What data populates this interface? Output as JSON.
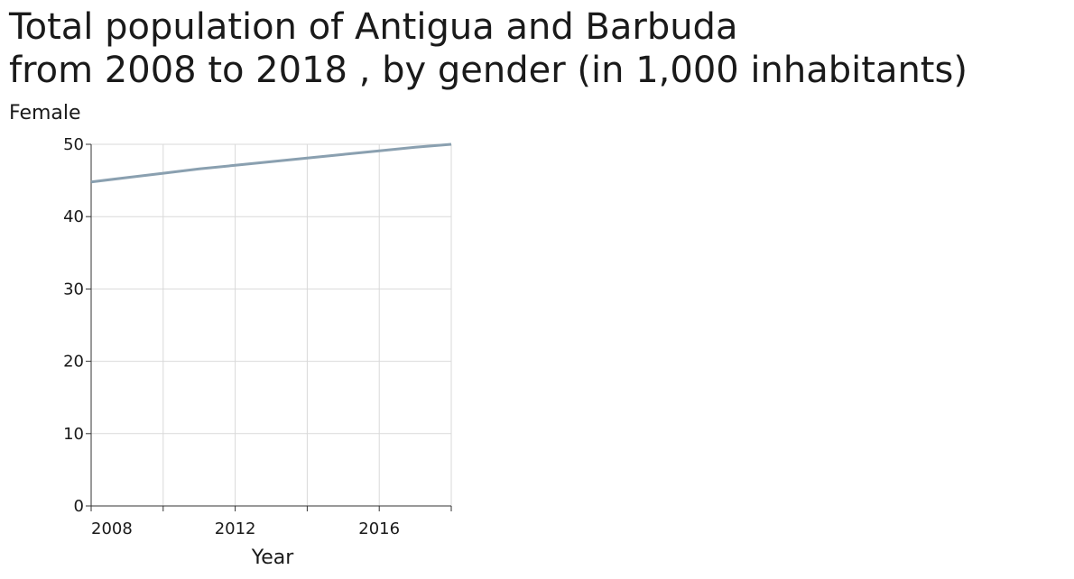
{
  "chart_data": {
    "type": "line",
    "title_line1": "Total population of Antigua and Barbuda",
    "title_line2": "from 2008 to 2018 , by gender (in 1,000 inhabitants)",
    "ylabel": "Female",
    "xlabel": "Year",
    "xlim": [
      2008,
      2018
    ],
    "ylim": [
      0,
      50
    ],
    "x_ticks": [
      2008,
      2012,
      2016
    ],
    "x_grid": [
      2008,
      2010,
      2012,
      2014,
      2016,
      2018
    ],
    "y_ticks": [
      0,
      10,
      20,
      30,
      40,
      50
    ],
    "grid": true,
    "legend": "none",
    "line_color": "#8aa0b0",
    "series": [
      {
        "x": [
          2008,
          2009,
          2010,
          2011,
          2012,
          2013,
          2014,
          2015,
          2016,
          2017,
          2018
        ],
        "values": [
          44.8,
          45.4,
          46.0,
          46.6,
          47.1,
          47.6,
          48.1,
          48.6,
          49.1,
          49.6,
          50.0
        ]
      }
    ]
  }
}
